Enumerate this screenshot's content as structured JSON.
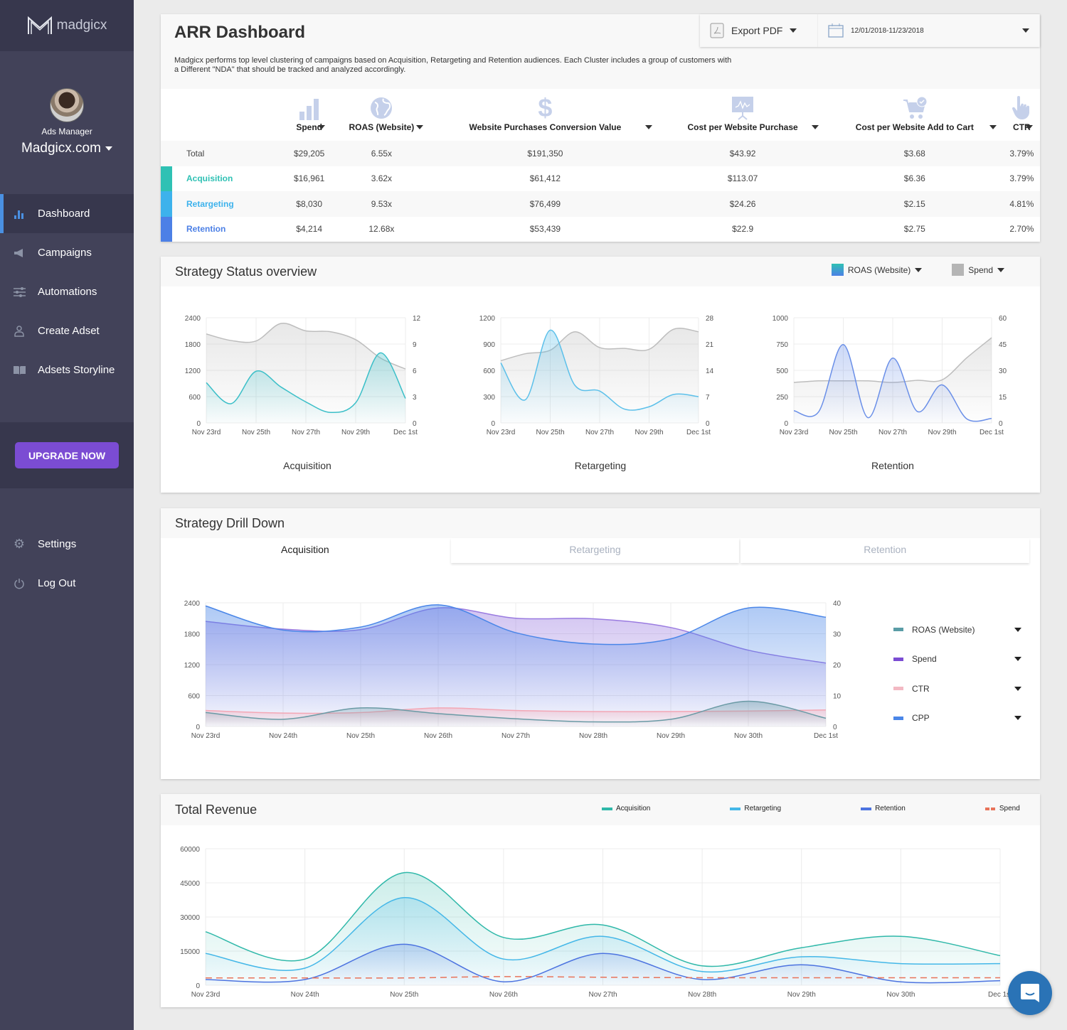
{
  "sidebar": {
    "logo_text": "madgicx",
    "profile_role": "Ads Manager",
    "account_name": "Madgicx.com",
    "nav": [
      {
        "label": "Dashboard",
        "icon": "bar-chart-icon",
        "active": true
      },
      {
        "label": "Campaigns",
        "icon": "megaphone-icon"
      },
      {
        "label": "Automations",
        "icon": "sliders-icon"
      },
      {
        "label": "Create Adset",
        "icon": "user-icon"
      },
      {
        "label": "Adsets Storyline",
        "icon": "book-icon"
      }
    ],
    "upgrade_label": "UPGRADE NOW",
    "bottom_nav": [
      {
        "label": "Settings",
        "icon": "gear-icon"
      },
      {
        "label": "Log Out",
        "icon": "power-icon"
      }
    ]
  },
  "header": {
    "title": "ARR Dashboard",
    "description": "Madgicx performs top level clustering of campaigns based on Acquisition, Retargeting and Retention audiences. Each Cluster includes a group of customers with a Different \"NDA\" that should be tracked and analyzed accordingly.",
    "export_label": "Export PDF",
    "date_range": "12/01/2018-11/23/2018"
  },
  "summary_table": {
    "columns": [
      {
        "label": "Spend",
        "icon": "bar-chart-icon"
      },
      {
        "label": "ROAS (Website)",
        "icon": "globe-icon"
      },
      {
        "label": "Website Purchases Conversion Value",
        "icon": "dollar-icon"
      },
      {
        "label": "Cost per Website Purchase",
        "icon": "presentation-icon"
      },
      {
        "label": "Cost per Website Add to Cart",
        "icon": "cart-icon"
      },
      {
        "label": "CTR",
        "icon": "hand-pointer-icon"
      }
    ],
    "rows": [
      {
        "label": "Total",
        "values": [
          "$29,205",
          "6.55x",
          "$191,350",
          "$43.92",
          "$3.68",
          "3.79%"
        ]
      },
      {
        "label": "Acquisition",
        "color": "#2fc1b4",
        "values": [
          "$16,961",
          "3.62x",
          "$61,412",
          "$113.07",
          "$6.36",
          "3.79%"
        ]
      },
      {
        "label": "Retargeting",
        "color": "#3db2ec",
        "values": [
          "$8,030",
          "9.53x",
          "$76,499",
          "$24.26",
          "$2.15",
          "4.81%"
        ]
      },
      {
        "label": "Retention",
        "color": "#4c80e6",
        "values": [
          "$4,214",
          "12.68x",
          "$53,439",
          "$22.9",
          "$2.75",
          "2.70%"
        ]
      }
    ]
  },
  "strategy_status": {
    "title": "Strategy Status overview",
    "legend": [
      {
        "label": "ROAS (Website)",
        "color": "#3bbfc8"
      },
      {
        "label": "Spend",
        "color": "#b5b5b5"
      }
    ]
  },
  "strategy_drill": {
    "title": "Strategy Drill Down",
    "tabs": [
      {
        "label": "Acquisition",
        "active": true
      },
      {
        "label": "Retargeting"
      },
      {
        "label": "Retention"
      }
    ],
    "legend": [
      {
        "label": "ROAS (Website)",
        "color": "#5a9da6"
      },
      {
        "label": "Spend",
        "color": "#7b4cd3"
      },
      {
        "label": "CTR",
        "color": "#f3b9c3"
      },
      {
        "label": "CPP",
        "color": "#4a86e8"
      }
    ]
  },
  "total_revenue": {
    "title": "Total Revenue",
    "legend": [
      {
        "label": "Acquisition",
        "color": "#2fb8a9"
      },
      {
        "label": "Retargeting",
        "color": "#44b7e8"
      },
      {
        "label": "Retention",
        "color": "#4c73e0"
      },
      {
        "label": "Spend",
        "color": "#e8735a"
      }
    ]
  },
  "chart_data": [
    {
      "type": "area",
      "title": "Acquisition",
      "x": [
        "Nov 23rd",
        "Nov 24th",
        "Nov 25th",
        "Nov 26th",
        "Nov 27th",
        "Nov 28th",
        "Nov 29th",
        "Nov 30th",
        "Dec 1st"
      ],
      "xticks": [
        "Nov 23rd",
        "Nov 25th",
        "Nov 27th",
        "Nov 29th",
        "Dec 1st"
      ],
      "ylim_left": [
        0,
        2400
      ],
      "yticks_left": [
        0,
        600,
        1200,
        1800,
        2400
      ],
      "ylim_right": [
        0,
        12
      ],
      "yticks_right": [
        0,
        3,
        6,
        9,
        12
      ],
      "series": [
        {
          "name": "Spend",
          "axis": "left",
          "color": "#bdbdbd",
          "values": [
            2030,
            1880,
            1870,
            2270,
            2100,
            2080,
            1900,
            1480,
            1230
          ]
        },
        {
          "name": "ROAS (Website)",
          "axis": "right",
          "color": "#3bbfc8",
          "values": [
            4.6,
            2.2,
            5.9,
            4.1,
            2.4,
            1.2,
            2.3,
            8.0,
            2.8
          ]
        }
      ]
    },
    {
      "type": "area",
      "title": "Retargeting",
      "x": [
        "Nov 23rd",
        "Nov 24th",
        "Nov 25th",
        "Nov 26th",
        "Nov 27th",
        "Nov 28th",
        "Nov 29th",
        "Nov 30th",
        "Dec 1st"
      ],
      "xticks": [
        "Nov 23rd",
        "Nov 25th",
        "Nov 27th",
        "Nov 29th",
        "Dec 1st"
      ],
      "ylim_left": [
        0,
        1200
      ],
      "yticks_left": [
        0,
        300,
        600,
        900,
        1200
      ],
      "ylim_right": [
        0,
        28
      ],
      "yticks_right": [
        0,
        7,
        14,
        21,
        28
      ],
      "series": [
        {
          "name": "Spend",
          "axis": "left",
          "color": "#bdbdbd",
          "values": [
            710,
            790,
            830,
            1040,
            860,
            850,
            840,
            1070,
            1040
          ]
        },
        {
          "name": "ROAS (Website)",
          "axis": "right",
          "color": "#5cc0ea",
          "values": [
            16,
            6.2,
            24.7,
            10,
            8.5,
            3.7,
            4.3,
            7.6,
            7
          ]
        }
      ]
    },
    {
      "type": "area",
      "title": "Retention",
      "x": [
        "Nov 23rd",
        "Nov 24th",
        "Nov 25th",
        "Nov 26th",
        "Nov 27th",
        "Nov 28th",
        "Nov 29th",
        "Nov 30th",
        "Dec 1st"
      ],
      "xticks": [
        "Nov 23rd",
        "Nov 25th",
        "Nov 27th",
        "Nov 29th",
        "Dec 1st"
      ],
      "ylim_left": [
        0,
        1000
      ],
      "yticks_left": [
        0,
        250,
        500,
        750,
        1000
      ],
      "ylim_right": [
        0,
        60
      ],
      "yticks_right": [
        0,
        15,
        30,
        45,
        60
      ],
      "series": [
        {
          "name": "Spend",
          "axis": "left",
          "color": "#bdbdbd",
          "values": [
            385,
            400,
            400,
            400,
            385,
            405,
            410,
            620,
            810
          ]
        },
        {
          "name": "ROAS (Website)",
          "axis": "right",
          "color": "#6a8fe8",
          "values": [
            7,
            6.3,
            44.7,
            3,
            37,
            6.5,
            21.7,
            2.3,
            2.6
          ]
        }
      ]
    },
    {
      "type": "area",
      "title": "Strategy Drill Down - Acquisition",
      "x": [
        "Nov 23rd",
        "Nov 24th",
        "Nov 25th",
        "Nov 26th",
        "Nov 27th",
        "Nov 28th",
        "Nov 29th",
        "Nov 30th",
        "Dec 1st"
      ],
      "xticks": [
        "Nov 23rd",
        "Nov 24th",
        "Nov 25th",
        "Nov 26th",
        "Nov 27th",
        "Nov 28th",
        "Nov 29th",
        "Nov 30th",
        "Dec 1st"
      ],
      "ylim_left": [
        0,
        2400
      ],
      "yticks_left": [
        0,
        600,
        1200,
        1800,
        2400
      ],
      "ylim_right": [
        0,
        40
      ],
      "yticks_right": [
        0,
        10,
        20,
        30,
        40
      ],
      "series": [
        {
          "name": "Spend",
          "axis": "left",
          "color": "#9a7be0",
          "values": [
            2040,
            1890,
            1880,
            2300,
            2100,
            2090,
            1920,
            1480,
            1230
          ]
        },
        {
          "name": "CPP",
          "axis": "left",
          "color": "#4a86e8",
          "values": [
            2340,
            1870,
            1930,
            2360,
            1820,
            1600,
            1700,
            2300,
            2120
          ]
        },
        {
          "name": "CTR",
          "axis": "left",
          "color": "#f3a7b5",
          "values": [
            310,
            260,
            270,
            360,
            310,
            290,
            290,
            300,
            320
          ]
        },
        {
          "name": "ROAS (Website)",
          "axis": "left",
          "color": "#6a9aa5",
          "values": [
            270,
            140,
            360,
            250,
            150,
            90,
            140,
            490,
            160
          ]
        }
      ]
    },
    {
      "type": "area",
      "title": "Total Revenue",
      "x": [
        "Nov 23rd",
        "Nov 24th",
        "Nov 25th",
        "Nov 26th",
        "Nov 27th",
        "Nov 28th",
        "Nov 29th",
        "Nov 30th",
        "Dec 1st"
      ],
      "xticks": [
        "Nov 23rd",
        "Nov 24th",
        "Nov 25th",
        "Nov 26th",
        "Nov 27th",
        "Nov 28th",
        "Nov 29th",
        "Nov 30th",
        "Dec 1st"
      ],
      "ylim": [
        0,
        60000
      ],
      "yticks": [
        0,
        15000,
        30000,
        45000,
        60000
      ],
      "series": [
        {
          "name": "Acquisition",
          "color": "#2fb8a9",
          "values": [
            23500,
            11500,
            49500,
            21000,
            26500,
            8500,
            16500,
            21500,
            13000
          ]
        },
        {
          "name": "Retargeting",
          "color": "#44b7e8",
          "values": [
            14000,
            7500,
            38500,
            11500,
            21500,
            6000,
            12500,
            9500,
            9500
          ]
        },
        {
          "name": "Retention",
          "color": "#4c73e0",
          "values": [
            2500,
            2500,
            18000,
            1500,
            14000,
            2500,
            9000,
            1500,
            2000
          ]
        },
        {
          "name": "Spend",
          "color": "#e8735a",
          "dashed": true,
          "values": [
            3200,
            3200,
            3200,
            3800,
            3500,
            3300,
            3300,
            3300,
            3300
          ]
        }
      ]
    }
  ]
}
